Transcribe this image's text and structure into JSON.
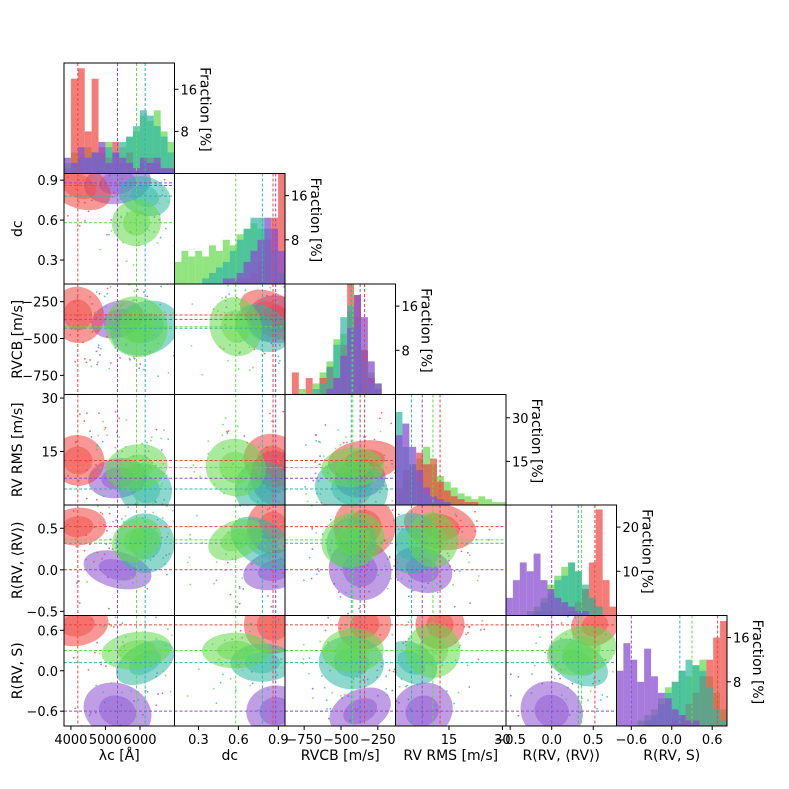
{
  "chart_data": {
    "type": "corner",
    "title": "",
    "series": [
      {
        "name": "red",
        "color": "#f0443f"
      },
      {
        "name": "green",
        "color": "#64d94a"
      },
      {
        "name": "teal",
        "color": "#30b7a4"
      },
      {
        "name": "purple",
        "color": "#8a4fd0"
      }
    ],
    "variables": [
      {
        "key": "lambda",
        "label": "λc [Å]",
        "range": [
          3800,
          7000
        ],
        "ticks": [
          4000,
          5000,
          6000
        ],
        "tick_labels": [
          "4000",
          "5000",
          "6000"
        ]
      },
      {
        "key": "dc",
        "label": "dc",
        "range": [
          0.12,
          0.95
        ],
        "ticks": [
          0.3,
          0.6,
          0.9
        ],
        "tick_labels": [
          "0.3",
          "0.6",
          "0.9"
        ]
      },
      {
        "key": "rvcb",
        "label": "RVCB [m/s]",
        "range": [
          -880,
          -130
        ],
        "ticks": [
          -750,
          -500,
          -250
        ],
        "tick_labels": [
          "−750",
          "−500",
          "−250"
        ]
      },
      {
        "key": "rvrms",
        "label": "RV RMS [m/s]",
        "range": [
          0,
          31
        ],
        "ticks": [
          15,
          30
        ],
        "tick_labels": [
          "15",
          "30"
        ]
      },
      {
        "key": "rrv",
        "label": "R(RV, ⟨RV⟩)",
        "range": [
          -0.55,
          0.78
        ],
        "ticks": [
          -0.5,
          0.0,
          0.5
        ],
        "tick_labels": [
          "−0.5",
          "0.0",
          "0.5"
        ]
      },
      {
        "key": "rs",
        "label": "R(RV, S)",
        "range": [
          -0.82,
          0.82
        ],
        "ticks": [
          -0.6,
          0.0,
          0.6
        ],
        "tick_labels": [
          "−0.6",
          "0.0",
          "0.6"
        ]
      }
    ],
    "hist_axis_label": "Fraction [%]",
    "hist_ticks": [
      {
        "values": [
          8,
          16
        ],
        "labels": [
          "8",
          "16"
        ],
        "ymax": 21
      },
      {
        "values": [
          8,
          16
        ],
        "labels": [
          "8",
          "16"
        ],
        "ymax": 20
      },
      {
        "values": [
          8,
          16
        ],
        "labels": [
          "8",
          "16"
        ],
        "ymax": 20
      },
      {
        "values": [
          15,
          30
        ],
        "labels": [
          "15",
          "30"
        ],
        "ymax": 38
      },
      {
        "values": [
          10,
          20
        ],
        "labels": [
          "10",
          "20"
        ],
        "ymax": 25
      },
      {
        "values": [
          8,
          16
        ],
        "labels": [
          "8",
          "16"
        ],
        "ymax": 20
      }
    ],
    "medians": {
      "red": [
        4200,
        0.86,
        -340,
        12.5,
        0.52,
        0.68
      ],
      "green": [
        5900,
        0.58,
        -420,
        10.5,
        0.36,
        0.3
      ],
      "teal": [
        6150,
        0.78,
        -430,
        4.5,
        0.32,
        0.12
      ],
      "purple": [
        5350,
        0.88,
        -370,
        7.5,
        0.0,
        -0.6
      ]
    },
    "histograms": {
      "red": [
        [
          0,
          18,
          20,
          8,
          18,
          5,
          3,
          6,
          2,
          4,
          1,
          2,
          3,
          2,
          1,
          1
        ],
        [
          0,
          0,
          0,
          0,
          0,
          0,
          0,
          0,
          0,
          1,
          1,
          2,
          4,
          8,
          12,
          20
        ],
        [
          0,
          4,
          0,
          3,
          0,
          3,
          5,
          3,
          9,
          20,
          18,
          8,
          3,
          1,
          0,
          0
        ],
        [
          6,
          12,
          14,
          18,
          14,
          16,
          8,
          5,
          3,
          2,
          1,
          1,
          0,
          0,
          0,
          0
        ],
        [
          0,
          0,
          0,
          0,
          0,
          0,
          0,
          0,
          0,
          1,
          3,
          6,
          12,
          24,
          8,
          2
        ],
        [
          0,
          0,
          0,
          0,
          0,
          0,
          0,
          0,
          1,
          2,
          4,
          6,
          9,
          12,
          16,
          19
        ]
      ],
      "green": [
        [
          2,
          4,
          3,
          5,
          3,
          4,
          6,
          4,
          5,
          7,
          8,
          11,
          10,
          12,
          8,
          6
        ],
        [
          4,
          6,
          5,
          6,
          5,
          7,
          6,
          8,
          7,
          9,
          10,
          11,
          10,
          8,
          4,
          2
        ],
        [
          0,
          0,
          1,
          0,
          2,
          4,
          6,
          10,
          11,
          15,
          14,
          8,
          4,
          2,
          0,
          0
        ],
        [
          4,
          9,
          12,
          16,
          20,
          14,
          10,
          8,
          6,
          4,
          3,
          2,
          3,
          2,
          1,
          1
        ],
        [
          0,
          0,
          0,
          1,
          2,
          4,
          7,
          9,
          11,
          12,
          10,
          6,
          4,
          2,
          0,
          0
        ],
        [
          0,
          0,
          0,
          1,
          2,
          3,
          5,
          7,
          8,
          10,
          9,
          11,
          12,
          9,
          6,
          3
        ]
      ],
      "teal": [
        [
          1,
          2,
          3,
          3,
          4,
          3,
          5,
          4,
          6,
          7,
          9,
          12,
          11,
          9,
          7,
          4
        ],
        [
          0,
          0,
          0,
          0,
          1,
          2,
          3,
          4,
          6,
          8,
          10,
          12,
          12,
          10,
          6,
          2
        ],
        [
          0,
          0,
          0,
          0,
          1,
          2,
          5,
          9,
          14,
          16,
          12,
          6,
          2,
          1,
          0,
          0
        ],
        [
          32,
          20,
          14,
          8,
          4,
          2,
          1,
          1,
          0,
          0,
          0,
          0,
          0,
          0,
          0,
          0
        ],
        [
          0,
          0,
          0,
          0,
          1,
          3,
          5,
          8,
          9,
          12,
          10,
          7,
          4,
          2,
          0,
          0
        ],
        [
          0,
          0,
          0,
          0,
          1,
          2,
          4,
          6,
          8,
          10,
          12,
          11,
          10,
          7,
          3,
          1
        ]
      ],
      "purple": [
        [
          3,
          2,
          5,
          3,
          4,
          6,
          2,
          4,
          3,
          2,
          1,
          3,
          2,
          3,
          1,
          1
        ],
        [
          0,
          0,
          0,
          0,
          0,
          0,
          0,
          1,
          1,
          2,
          4,
          6,
          8,
          12,
          10,
          6
        ],
        [
          0,
          0,
          0,
          0,
          0,
          0,
          1,
          3,
          7,
          12,
          18,
          14,
          6,
          2,
          0,
          0
        ],
        [
          24,
          28,
          20,
          12,
          6,
          3,
          2,
          1,
          0,
          0,
          0,
          0,
          0,
          0,
          0,
          0
        ],
        [
          4,
          8,
          12,
          10,
          14,
          8,
          6,
          4,
          3,
          2,
          1,
          1,
          0,
          0,
          0,
          0
        ],
        [
          10,
          15,
          12,
          8,
          14,
          9,
          6,
          5,
          3,
          2,
          1,
          1,
          0,
          0,
          0,
          0
        ]
      ]
    }
  }
}
